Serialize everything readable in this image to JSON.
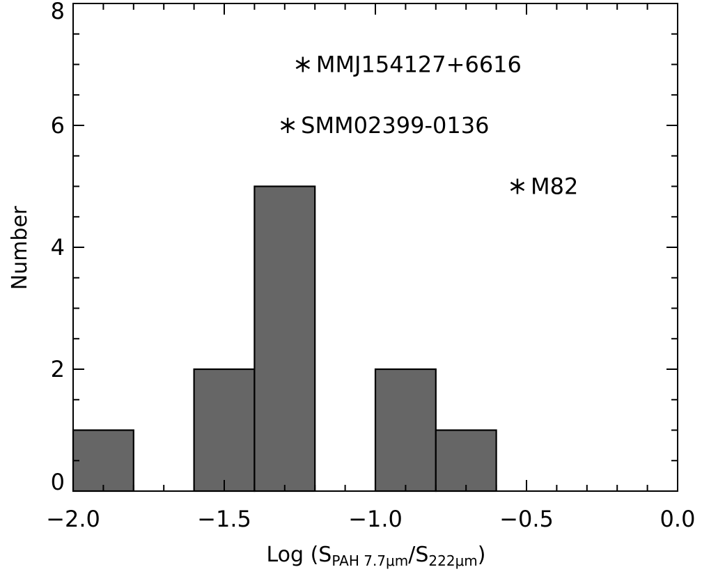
{
  "chart_data": {
    "type": "bar",
    "xlabel": "Log (S",
    "xlabel_sub1": "PAH 7.7μm",
    "xlabel_mid": "/S",
    "xlabel_sub2": "222μm",
    "xlabel_end": ")",
    "ylabel": "Number",
    "xlim": [
      -2.0,
      0.0
    ],
    "ylim": [
      0,
      8
    ],
    "x_ticks": [
      "−2.0",
      "−1.5",
      "−1.0",
      "−0.5",
      "0.0"
    ],
    "y_ticks": [
      "0",
      "2",
      "4",
      "6",
      "8"
    ],
    "bar_color": "#666666",
    "bins": [
      {
        "x0": -2.0,
        "x1": -1.8,
        "count": 1
      },
      {
        "x0": -1.6,
        "x1": -1.4,
        "count": 2
      },
      {
        "x0": -1.4,
        "x1": -1.2,
        "count": 5
      },
      {
        "x0": -1.0,
        "x1": -0.8,
        "count": 2
      },
      {
        "x0": -0.8,
        "x1": -0.6,
        "count": 1
      }
    ],
    "annotations": [
      {
        "label": "MMJ154127+6616",
        "x": -1.24,
        "y": 7
      },
      {
        "label": "SMM02399-0136",
        "x": -1.29,
        "y": 6
      },
      {
        "label": "M82",
        "x": -0.53,
        "y": 5
      }
    ]
  }
}
